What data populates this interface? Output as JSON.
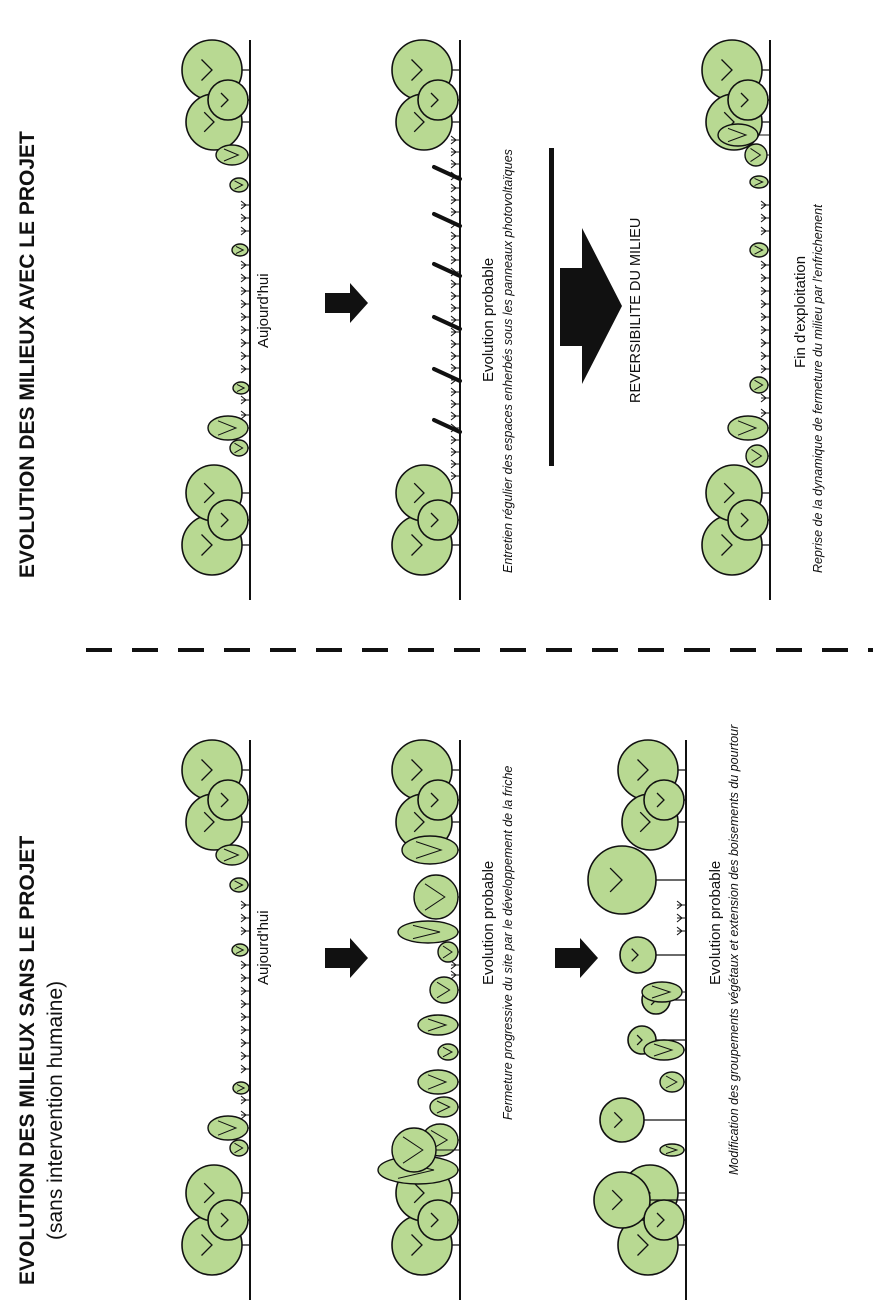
{
  "left_section": {
    "title": "EVOLUTION DES MILIEUX SANS LE PROJET",
    "subtitle": "(sans intervention humaine)",
    "stages": [
      {
        "label": "Aujourd'hui",
        "caption": ""
      },
      {
        "label": "Evolution probable",
        "caption": "Fermeture progressive du site par le développement de la friche"
      },
      {
        "label": "Evolution probable",
        "caption": "Modification des groupements végétaux et extension des boisements du pourtour"
      }
    ]
  },
  "right_section": {
    "title": "EVOLUTION DES MILIEUX AVEC LE PROJET",
    "stages": [
      {
        "label": "Aujourd'hui",
        "caption": ""
      },
      {
        "label": "Evolution probable",
        "caption": "Entretien régulier des espaces enherbés sous les panneaux photovoltaïques"
      },
      {
        "label": "Fin d'exploitation",
        "caption": "Reprise de la dynamique de fermeture du milieu par l'enfrichement"
      }
    ],
    "reversibility_label": "REVERSIBILITE DU MILIEU"
  },
  "colors": {
    "tree_fill": "#b8d992",
    "stroke": "#111111",
    "arrow": "#111111"
  }
}
